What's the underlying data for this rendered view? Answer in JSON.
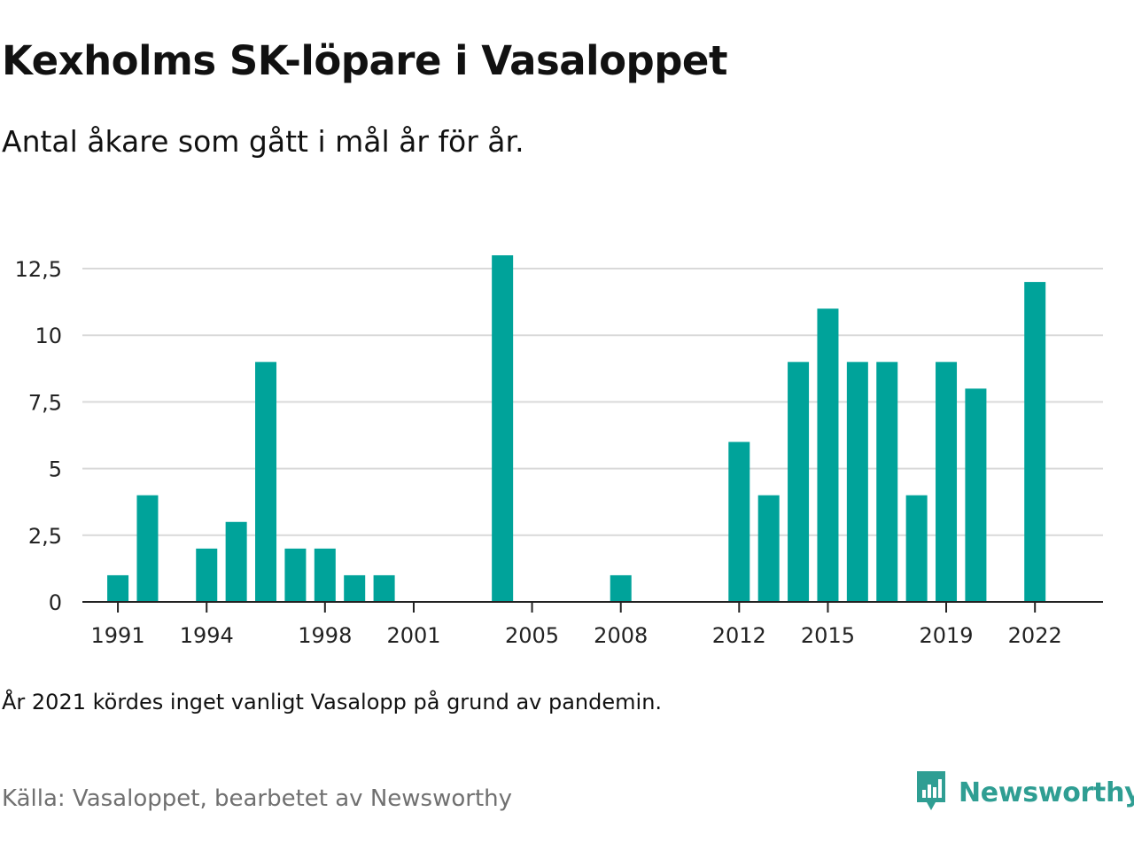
{
  "title": "Kexholms SK-löpare i Vasaloppet",
  "subtitle": "Antal åkare som gått i mål år för år.",
  "note": "År 2021 kördes inget vanligt Vasalopp på grund av pandemin.",
  "source": "Källa: Vasaloppet, bearbetet av Newsworthy",
  "brand": {
    "name": "Newsworthy",
    "icon": "newsworthy-logo-icon",
    "color": "#2f9e93"
  },
  "colors": {
    "bar": "#00a39a",
    "grid": "#d9d9d9",
    "axis": "#222222"
  },
  "chart_data": {
    "type": "bar",
    "title": "Kexholms SK-löpare i Vasaloppet",
    "xlabel": "",
    "ylabel": "",
    "ylim": [
      0,
      13
    ],
    "xlim": [
      1989.8,
      2024.3
    ],
    "yticks": [
      0,
      2.5,
      5,
      7.5,
      10,
      12.5
    ],
    "ytick_labels": [
      "0",
      "2,5",
      "5",
      "7,5",
      "10",
      "12,5"
    ],
    "xticks": [
      1991,
      1994,
      1998,
      2001,
      2005,
      2008,
      2012,
      2015,
      2019,
      2022
    ],
    "grid": true,
    "x": [
      1991,
      1992,
      1994,
      1995,
      1996,
      1997,
      1998,
      1999,
      2000,
      2004,
      2008,
      2012,
      2013,
      2014,
      2015,
      2016,
      2017,
      2018,
      2019,
      2020,
      2022
    ],
    "values": [
      1,
      4,
      2,
      3,
      9,
      2,
      2,
      1,
      1,
      13,
      1,
      6,
      4,
      9,
      11,
      9,
      9,
      4,
      9,
      8,
      12
    ]
  }
}
